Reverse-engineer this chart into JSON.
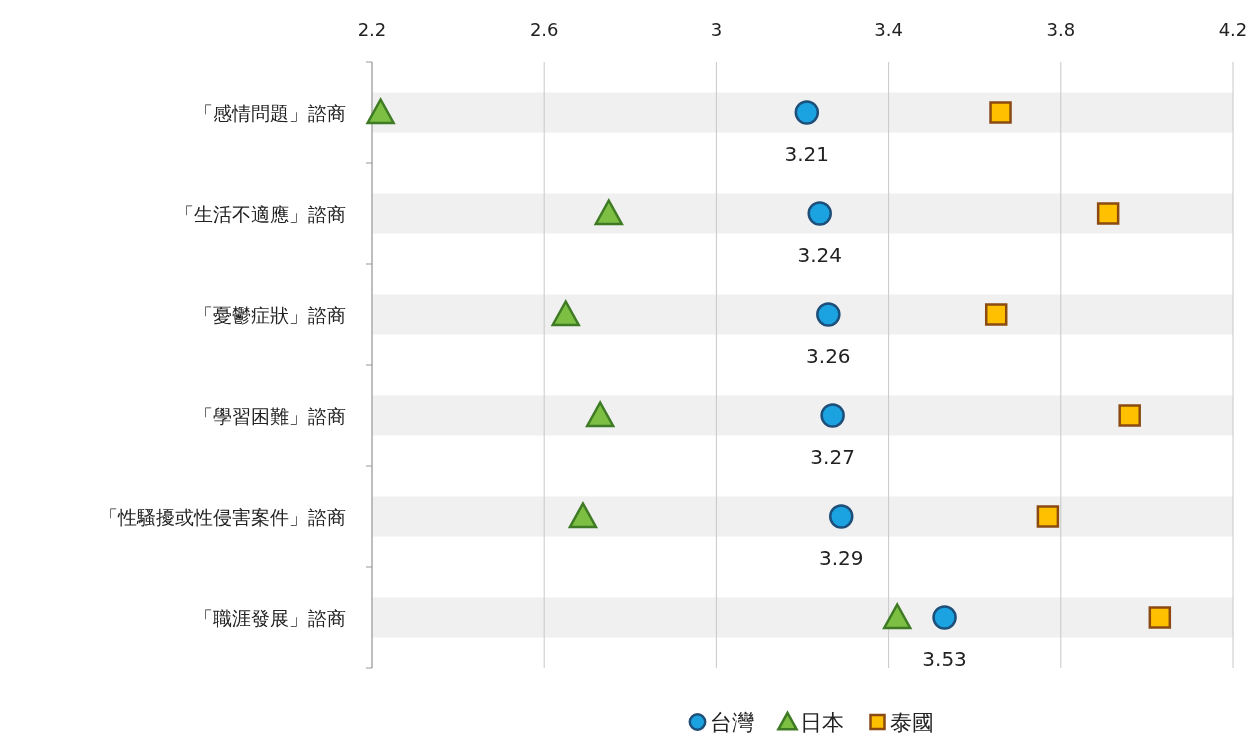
{
  "chart_data": {
    "type": "scatter",
    "orientation": "horizontal",
    "categories": [
      "「感情問題」諮商",
      "「生活不適應」諮商",
      "「憂鬱症狀」諮商",
      "「學習困難」諮商",
      "「性騷擾或性侵害案件」諮商",
      "「職涯發展」諮商"
    ],
    "xlim": [
      2.2,
      4.2
    ],
    "xticks": [
      2.2,
      2.6,
      3,
      3.4,
      3.8,
      4.2
    ],
    "grid": "x",
    "legend": "bottom",
    "bands": [
      {
        "axis": "y",
        "from": "「感情問題」諮商",
        "to": "「感情問題」諮商",
        "color": "#f0f0f0"
      },
      {
        "axis": "y",
        "from": "「生活不適應」諮商",
        "to": "「生活不適應」諮商",
        "color": "#f0f0f0"
      },
      {
        "axis": "y",
        "from": "「憂鬱症狀」諮商",
        "to": "「憂鬱症狀」諮商",
        "color": "#f0f0f0"
      },
      {
        "axis": "y",
        "from": "「學習困難」諮商",
        "to": "「學習困難」諮商",
        "color": "#f0f0f0"
      },
      {
        "axis": "y",
        "from": "「性騷擾或性侵害案件」諮商",
        "to": "「性騷擾或性侵害案件」諮商",
        "color": "#f0f0f0"
      },
      {
        "axis": "y",
        "from": "「職涯發展」諮商",
        "to": "「職涯發展」諮商",
        "color": "#f0f0f0"
      }
    ],
    "series": [
      {
        "name": "台灣",
        "color": "#1aa3e0",
        "marker": "circle",
        "values": [
          3.21,
          3.24,
          3.26,
          3.27,
          3.29,
          3.53
        ],
        "value_labels": [
          "3.21",
          "3.24",
          "3.26",
          "3.27",
          "3.29",
          "3.53"
        ]
      },
      {
        "name": "日本",
        "color": "#7cbf43",
        "marker": "triangle",
        "values": [
          2.22,
          2.75,
          2.65,
          2.73,
          2.69,
          3.42
        ]
      },
      {
        "name": "泰國",
        "color": "#ffc000",
        "marker": "square",
        "values": [
          3.66,
          3.91,
          3.65,
          3.96,
          3.77,
          4.03
        ]
      }
    ]
  }
}
